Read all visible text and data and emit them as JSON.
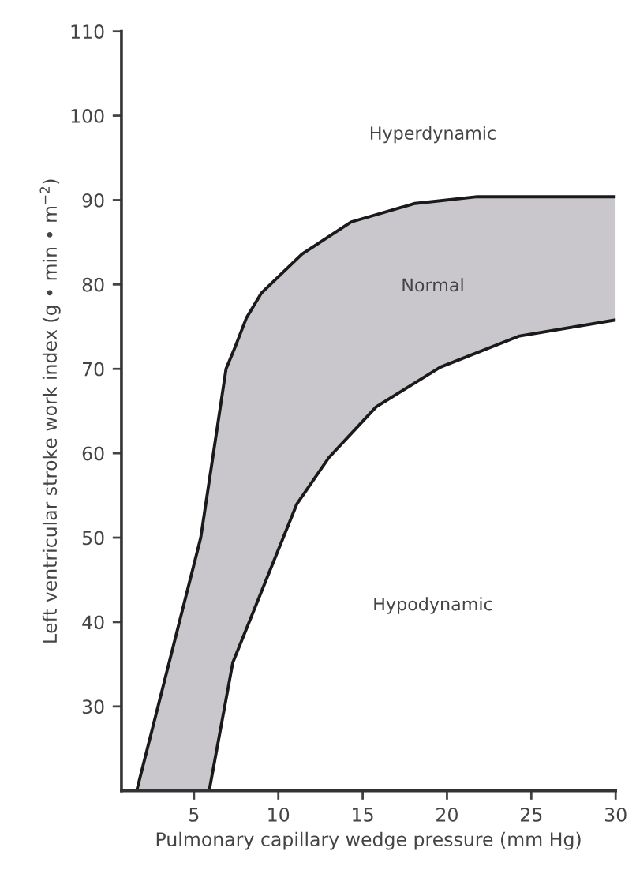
{
  "chart_data": {
    "type": "area",
    "xlabel": "Pulmonary capillary wedge pressure (mm Hg)",
    "ylabel": "Left ventricular stroke work index (g • min • m$^{−2}$)",
    "xlim": [
      0.7,
      30
    ],
    "ylim": [
      20,
      110
    ],
    "xticks": [
      5,
      10,
      15,
      20,
      25,
      30
    ],
    "yticks": [
      30,
      40,
      50,
      60,
      70,
      80,
      90,
      100,
      110
    ],
    "colors": [
      "#c9c7cc"
    ],
    "grid": false,
    "legend": false,
    "series": [
      {
        "type": "line",
        "color": "#1a1a1a",
        "x": [
          1.6,
          5.4,
          6.9,
          7.4,
          8.1,
          9.0,
          11.4,
          14.3,
          18.1,
          21.8,
          30
        ],
        "values": [
          20,
          50,
          70,
          72.4,
          76,
          79,
          83.6,
          87.4,
          89.6,
          90.4,
          90.4
        ]
      },
      {
        "type": "line",
        "color": "#1a1a1a",
        "x": [
          5.9,
          7.3,
          9.2,
          11.1,
          13.0,
          15.8,
          19.6,
          24.3,
          30
        ],
        "values": [
          20,
          35.2,
          44.6,
          54,
          59.5,
          65.5,
          70.2,
          73.9,
          75.8
        ]
      }
    ],
    "annotations": [
      "Hyperdynamic",
      "Normal",
      "Hypodynamic"
    ]
  }
}
